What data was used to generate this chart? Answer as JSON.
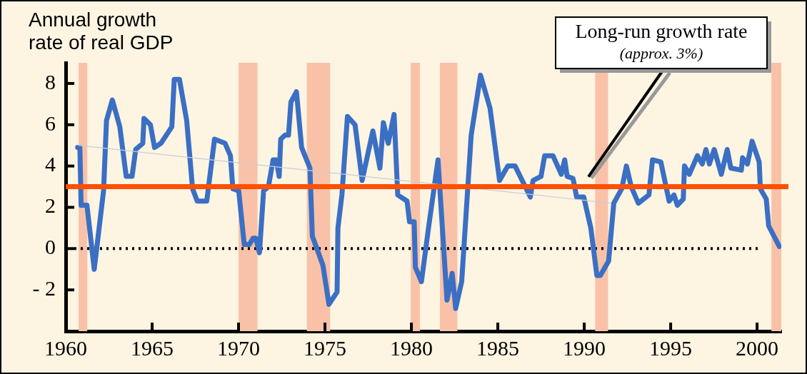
{
  "chart_data": {
    "type": "line",
    "ylabel": "Annual growth rate of real GDP",
    "xlim": [
      1960,
      2001.4
    ],
    "xticks": [
      1960,
      1965,
      1970,
      1975,
      1980,
      1985,
      1990,
      1995,
      2000
    ],
    "ylim": [
      -4,
      9
    ],
    "yticks": [
      {
        "value": -2,
        "label": "- 2"
      },
      0,
      2,
      4,
      6,
      8
    ],
    "grid": false,
    "legend": false,
    "marker": "none",
    "line_style": "solid",
    "series": [
      {
        "color": "#c9cdd6",
        "x": [
          1960.75,
          1991.55
        ],
        "values": [
          5.0,
          2.2
        ]
      },
      {
        "color": "#3b6fc4",
        "x": [
          1960.69,
          1960.82,
          1960.89,
          1961.23,
          1961.65,
          1962.19,
          1962.36,
          1962.7,
          1963.13,
          1963.5,
          1963.84,
          1964.05,
          1964.46,
          1964.53,
          1964.9,
          1965.14,
          1965.51,
          1966.14,
          1966.28,
          1966.58,
          1967.0,
          1967.34,
          1967.61,
          1968.16,
          1968.61,
          1969.22,
          1969.53,
          1969.67,
          1970.01,
          1970.33,
          1970.63,
          1970.84,
          1971.0,
          1971.21,
          1971.45,
          1971.73,
          1972.0,
          1972.18,
          1972.35,
          1972.44,
          1972.69,
          1972.89,
          1973.03,
          1973.35,
          1973.65,
          1974.13,
          1974.27,
          1974.88,
          1975.23,
          1975.7,
          1975.75,
          1975.98,
          1976.3,
          1976.74,
          1977.15,
          1977.77,
          1978.18,
          1978.38,
          1978.66,
          1979.0,
          1979.21,
          1979.75,
          1979.89,
          1980.16,
          1980.23,
          1980.58,
          1980.99,
          1981.54,
          1982.06,
          1982.36,
          1982.56,
          1982.91,
          1983.46,
          1984.0,
          1984.55,
          1985.1,
          1985.58,
          1986.0,
          1986.88,
          1987.04,
          1987.5,
          1987.71,
          1988.19,
          1988.67,
          1988.87,
          1989.01,
          1989.35,
          1989.56,
          1989.97,
          1990.38,
          1990.73,
          1990.93,
          1991.41,
          1991.71,
          1992.17,
          1992.44,
          1992.72,
          1993.13,
          1993.74,
          1993.95,
          1994.43,
          1994.91,
          1995.19,
          1995.39,
          1995.73,
          1995.8,
          1996.08,
          1996.55,
          1996.83,
          1997.04,
          1997.24,
          1997.52,
          1997.93,
          1998.27,
          1998.48,
          1999.09,
          1999.16,
          1999.44,
          1999.71,
          2000.12,
          2000.19,
          2000.53,
          2000.67,
          2001.29
        ],
        "values": [
          4.9,
          4.9,
          2.1,
          2.1,
          -1.0,
          2.8,
          6.2,
          7.2,
          5.9,
          3.5,
          3.5,
          4.8,
          5.1,
          6.3,
          6.0,
          4.9,
          5.1,
          5.9,
          8.2,
          8.2,
          6.2,
          2.9,
          2.3,
          2.3,
          5.3,
          5.1,
          4.5,
          2.9,
          2.8,
          0.2,
          0.2,
          0.5,
          0.5,
          -0.2,
          2.8,
          3.0,
          4.3,
          4.3,
          3.5,
          5.3,
          5.5,
          5.5,
          7.1,
          7.6,
          4.9,
          3.9,
          0.6,
          -0.8,
          -2.7,
          -2.1,
          1.0,
          2.6,
          6.4,
          6.0,
          3.3,
          5.7,
          3.9,
          6.1,
          5.1,
          6.5,
          2.6,
          2.3,
          1.3,
          1.3,
          -0.9,
          -1.6,
          1.0,
          4.3,
          -2.5,
          -1.2,
          -2.9,
          -1.6,
          5.5,
          8.4,
          6.8,
          3.3,
          4.0,
          4.0,
          2.5,
          3.3,
          3.5,
          4.5,
          4.5,
          3.6,
          4.3,
          3.5,
          3.4,
          2.5,
          2.5,
          1.0,
          -1.3,
          -1.3,
          -0.6,
          2.2,
          2.9,
          4.0,
          3.0,
          2.2,
          2.6,
          4.3,
          4.2,
          2.3,
          2.6,
          2.1,
          2.4,
          4.0,
          3.6,
          4.5,
          4.1,
          4.8,
          4.1,
          4.8,
          3.6,
          4.8,
          3.9,
          3.8,
          4.4,
          4.1,
          5.2,
          4.2,
          2.9,
          2.4,
          1.1,
          0.1
        ]
      }
    ],
    "ref_lines": [
      {
        "axis": "y",
        "value": 0,
        "color": "#000000",
        "line_style": "dotted"
      },
      {
        "axis": "y",
        "value": 3,
        "color": "#ff4f00",
        "line_style": "solid"
      }
    ],
    "bands": [
      {
        "axis": "x",
        "from": 1960.75,
        "to": 1961.25,
        "color": "#f9c2a8"
      },
      {
        "axis": "x",
        "from": 1970.0,
        "to": 1971.1,
        "color": "#f9c2a8"
      },
      {
        "axis": "x",
        "from": 1973.95,
        "to": 1975.3,
        "color": "#f9c2a8"
      },
      {
        "axis": "x",
        "from": 1979.96,
        "to": 1980.5,
        "color": "#f9c2a8"
      },
      {
        "axis": "x",
        "from": 1981.65,
        "to": 1982.66,
        "color": "#f9c2a8"
      },
      {
        "axis": "x",
        "from": 1990.63,
        "to": 1991.38,
        "color": "#f9c2a8"
      },
      {
        "axis": "x",
        "from": 2000.83,
        "to": 2001.4,
        "color": "#f9c2a8"
      }
    ],
    "annotations": [
      "Long-run growth rate",
      "(approx. 3%)"
    ]
  }
}
